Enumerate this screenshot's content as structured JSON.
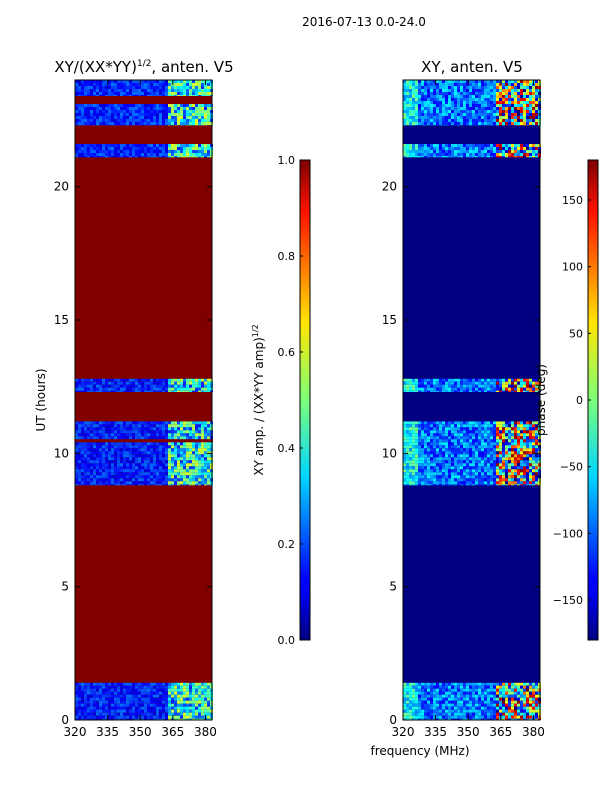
{
  "figure": {
    "suptitle": "2016-07-13 0.0-24.0",
    "shared_xlabel": "frequency (MHz)"
  },
  "chart_data": [
    {
      "type": "heatmap",
      "title": "XY/(XX*YY)",
      "title_exponent": "1/2",
      "title_suffix": ", anten. V5",
      "xlabel": "",
      "ylabel": "UT (hours)",
      "xlim": [
        320,
        383
      ],
      "ylim": [
        0,
        24
      ],
      "xticks": [
        "320",
        "335",
        "350",
        "365",
        "380"
      ],
      "xtick_values": [
        320,
        335,
        350,
        365,
        380
      ],
      "yticks": [
        "0",
        "5",
        "10",
        "15",
        "20"
      ],
      "ytick_values": [
        0,
        5,
        10,
        15,
        20
      ],
      "colorbar": {
        "label": "XY amp. / (XX*YY amp)",
        "label_exponent": "1/2",
        "range": [
          0.0,
          1.0
        ],
        "ticks": [
          "0.0",
          "0.2",
          "0.4",
          "0.6",
          "0.8",
          "1.0"
        ],
        "tick_values": [
          0.0,
          0.2,
          0.4,
          0.6,
          0.8,
          1.0
        ]
      },
      "bands": [
        {
          "y0": 0.0,
          "y1": 1.4,
          "state": "noisy",
          "value": 0.15
        },
        {
          "y0": 1.4,
          "y1": 8.8,
          "state": "saturated",
          "value": 1.0
        },
        {
          "y0": 8.8,
          "y1": 11.2,
          "state": "noisy",
          "value": 0.15
        },
        {
          "y0": 11.2,
          "y1": 12.3,
          "state": "saturated",
          "value": 1.0
        },
        {
          "y0": 12.3,
          "y1": 12.8,
          "state": "noisy",
          "value": 0.15
        },
        {
          "y0": 12.8,
          "y1": 21.1,
          "state": "saturated",
          "value": 1.0
        },
        {
          "y0": 21.1,
          "y1": 21.6,
          "state": "noisy",
          "value": 0.15
        },
        {
          "y0": 21.6,
          "y1": 22.3,
          "state": "saturated",
          "value": 1.0
        },
        {
          "y0": 22.3,
          "y1": 23.1,
          "state": "noisy",
          "value": 0.15
        },
        {
          "y0": 23.1,
          "y1": 23.4,
          "state": "saturated",
          "value": 1.0
        },
        {
          "y0": 23.4,
          "y1": 24.0,
          "state": "noisy",
          "value": 0.15
        }
      ]
    },
    {
      "type": "heatmap",
      "title": "XY, anten. V5",
      "xlabel": "",
      "ylabel": "",
      "xlim": [
        320,
        383
      ],
      "ylim": [
        0,
        24
      ],
      "xticks": [
        "320",
        "335",
        "350",
        "365",
        "380"
      ],
      "xtick_values": [
        320,
        335,
        350,
        365,
        380
      ],
      "yticks": [
        "0",
        "5",
        "10",
        "15",
        "20"
      ],
      "ytick_values": [
        0,
        5,
        10,
        15,
        20
      ],
      "colorbar": {
        "label": "phase (deg)",
        "range": [
          -180,
          180
        ],
        "ticks": [
          "−150",
          "−100",
          "−50",
          "0",
          "50",
          "100",
          "150"
        ],
        "tick_values": [
          -150,
          -100,
          -50,
          0,
          50,
          100,
          150
        ]
      },
      "bands": [
        {
          "y0": 0.0,
          "y1": 1.4,
          "state": "noisy"
        },
        {
          "y0": 1.4,
          "y1": 8.8,
          "state": "flat",
          "value": -180
        },
        {
          "y0": 8.8,
          "y1": 11.2,
          "state": "noisy"
        },
        {
          "y0": 11.2,
          "y1": 12.3,
          "state": "flat",
          "value": -180
        },
        {
          "y0": 12.3,
          "y1": 12.8,
          "state": "noisy"
        },
        {
          "y0": 12.8,
          "y1": 21.1,
          "state": "flat",
          "value": -180
        },
        {
          "y0": 21.1,
          "y1": 21.6,
          "state": "noisy"
        },
        {
          "y0": 21.6,
          "y1": 22.3,
          "state": "flat",
          "value": -180
        },
        {
          "y0": 22.3,
          "y1": 24.0,
          "state": "noisy"
        }
      ]
    }
  ]
}
